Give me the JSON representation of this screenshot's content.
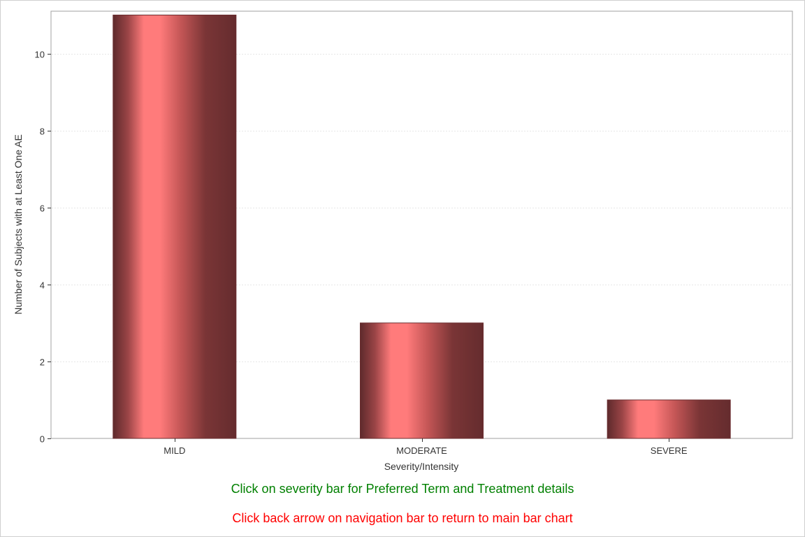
{
  "chart_data": {
    "type": "bar",
    "categories": [
      "MILD",
      "MODERATE",
      "SEVERE"
    ],
    "values": [
      11,
      3,
      1
    ],
    "xlabel": "Severity/Intensity",
    "ylabel": "Number of Subjects with at Least One AE",
    "ylim": [
      0,
      11.1
    ],
    "yticks": [
      0,
      2,
      4,
      6,
      8,
      10
    ],
    "grid": true,
    "bar_color": "#ff7b7b",
    "bar_edge_color": "#6a2d2f"
  },
  "notes": {
    "click_bar": "Click on severity bar for Preferred Term and Treatment details",
    "back_arrow": "Click back arrow on navigation bar to return to main bar chart"
  },
  "colors": {
    "note_green": "#008000",
    "note_red": "#ff0000"
  }
}
